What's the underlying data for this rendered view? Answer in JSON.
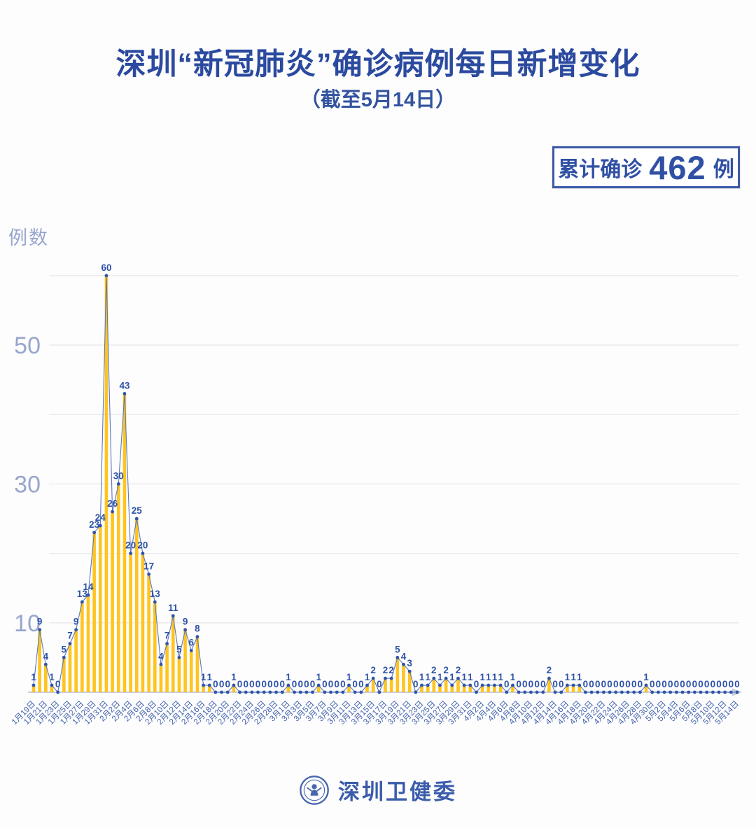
{
  "page": {
    "title": "深圳“新冠肺炎”确诊病例每日新增变化",
    "subtitle": "（截至5月14日）",
    "badge": {
      "prefix": "累计确诊",
      "count": "462",
      "unit": "例"
    },
    "footer": {
      "source_name": "深圳卫健委",
      "logo": "shenzhen-health-commission-emblem"
    }
  },
  "colors": {
    "title_blue": "#2b4a9f",
    "bar_yellow": "#ffc41f",
    "line_blue": "#5b79be",
    "dot_blue": "#2f54a8",
    "value_label_blue": "#2e52a7",
    "x_tick_blue": "#4161ae",
    "y_tick_gray_blue": "#98a5ce",
    "grid_gray": "#e9e9e9",
    "axis_gray": "#c5ccdd"
  },
  "chart_data": {
    "type": "bar",
    "overlay": "line-with-markers-and-value-labels",
    "title": "深圳“新冠肺炎”确诊病例每日新增变化",
    "subtitle": "（截至5月14日）",
    "ylabel": "例数",
    "xlabel": "",
    "ylim": [
      0,
      62
    ],
    "grid": "horizontal",
    "grid_values": [
      10,
      20,
      30,
      40,
      50,
      60
    ],
    "y_ticks": [
      10,
      30,
      50
    ],
    "x_start_date": "1月19日",
    "x_end_date": "5月14日",
    "x_tick_every_n_points": 2,
    "x_tick_labels": [
      "1月19日",
      "1月21日",
      "1月23日",
      "1月25日",
      "1月27日",
      "1月29日",
      "1月31日",
      "2月2日",
      "2月4日",
      "2月6日",
      "2月8日",
      "2月10日",
      "2月12日",
      "2月14日",
      "2月16日",
      "2月18日",
      "2月20日",
      "2月22日",
      "2月24日",
      "2月26日",
      "2月28日",
      "3月1日",
      "3月3日",
      "3月5日",
      "3月7日",
      "3月9日",
      "3月11日",
      "3月13日",
      "3月15日",
      "3月17日",
      "3月19日",
      "3月21日",
      "3月23日",
      "3月25日",
      "3月27日",
      "3月29日",
      "3月31日",
      "4月2日",
      "4月4日",
      "4月6日",
      "4月8日",
      "4月10日",
      "4月12日",
      "4月14日",
      "4月16日",
      "4月18日",
      "4月20日",
      "4月22日",
      "4月24日",
      "4月26日",
      "4月28日",
      "4月30日",
      "5月2日",
      "5月4日",
      "5月6日",
      "5月8日",
      "5月10日",
      "5月12日",
      "5月14日"
    ],
    "values": [
      1,
      9,
      4,
      1,
      0,
      5,
      7,
      9,
      13,
      14,
      23,
      24,
      60,
      26,
      30,
      43,
      20,
      25,
      20,
      17,
      13,
      4,
      7,
      11,
      5,
      9,
      6,
      8,
      1,
      1,
      0,
      0,
      0,
      1,
      0,
      0,
      0,
      0,
      0,
      0,
      0,
      0,
      1,
      0,
      0,
      0,
      0,
      1,
      0,
      0,
      0,
      0,
      1,
      0,
      0,
      1,
      2,
      0,
      2,
      2,
      5,
      4,
      3,
      0,
      1,
      1,
      2,
      1,
      2,
      1,
      2,
      1,
      1,
      0,
      1,
      1,
      1,
      1,
      0,
      1,
      0,
      0,
      0,
      0,
      0,
      2,
      0,
      0,
      1,
      1,
      1,
      0,
      0,
      0,
      0,
      0,
      0,
      0,
      0,
      0,
      0,
      1,
      0,
      0,
      0,
      0,
      0,
      0,
      0,
      0,
      0,
      0,
      0,
      0,
      0,
      0,
      0
    ],
    "values_total": 462
  }
}
